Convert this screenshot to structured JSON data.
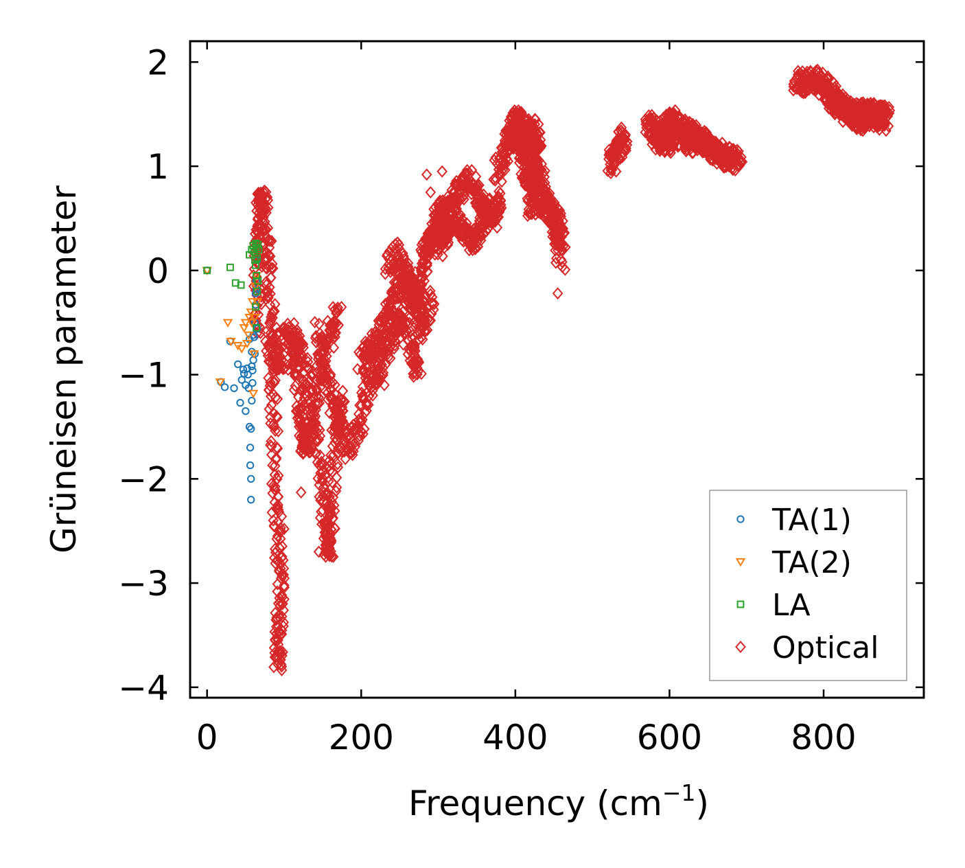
{
  "chart_data": {
    "type": "scatter",
    "title": "",
    "xlabel": "Frequency (cm",
    "xlabel_sup": "−1",
    "xlabel_tail": ")",
    "ylabel": "Grüneisen parameter",
    "xlim": [
      -22,
      930
    ],
    "ylim": [
      -4.1,
      2.2
    ],
    "xticks": [
      0,
      200,
      400,
      600,
      800
    ],
    "xtick_labels": [
      "0",
      "200",
      "400",
      "600",
      "800"
    ],
    "yticks": [
      2,
      1,
      0,
      -1,
      -2,
      -3,
      -4
    ],
    "ytick_labels": [
      "2",
      "1",
      "0",
      "−1",
      "−2",
      "−3",
      "−4"
    ],
    "legend_position": "lower-right",
    "series": [
      {
        "name": "TA(1)",
        "label": "TA(1)",
        "marker": "circle",
        "color": "#1f77b4",
        "x": [
          0,
          18,
          23,
          30,
          35,
          40,
          43,
          45,
          47,
          48,
          50,
          50,
          52,
          53,
          54,
          55,
          55,
          56,
          56,
          57,
          57,
          57,
          58,
          58,
          58,
          59,
          59,
          60,
          60,
          61,
          62,
          62,
          63,
          63,
          64,
          64,
          65,
          65
        ],
        "y": [
          0.0,
          -1.07,
          -1.12,
          -0.68,
          -1.13,
          -0.9,
          -1.27,
          -1.05,
          -0.95,
          -0.99,
          -1.1,
          -1.35,
          -0.94,
          -1.0,
          -1.13,
          -0.66,
          -1.5,
          -1.7,
          -1.87,
          -2.0,
          -2.2,
          -1.52,
          -0.78,
          -1.25,
          -0.92,
          -1.08,
          -0.96,
          -0.62,
          -0.86,
          -0.64,
          -0.8,
          -0.5,
          -0.33,
          -0.22,
          -0.18,
          -0.1,
          0.1,
          -0.56
        ]
      },
      {
        "name": "TA(2)",
        "label": "TA(2)",
        "marker": "triangle-down",
        "color": "#ff7f0e",
        "x": [
          0,
          17,
          27,
          31,
          40,
          45,
          48,
          50,
          52,
          54,
          55,
          57,
          58,
          59,
          60,
          61,
          62,
          63,
          64,
          65
        ],
        "y": [
          0.0,
          -1.07,
          -0.5,
          -0.68,
          -0.72,
          -0.75,
          -0.55,
          -0.5,
          -0.7,
          -0.62,
          -0.45,
          -0.4,
          -0.5,
          -0.3,
          -1.18,
          -0.8,
          -0.45,
          -0.15,
          -0.05,
          -0.3
        ]
      },
      {
        "name": "LA",
        "label": "LA",
        "marker": "square",
        "color": "#2ca02c",
        "x": [
          0,
          30,
          37,
          44,
          55,
          58,
          60,
          61,
          62,
          63,
          63,
          64,
          64,
          65,
          65,
          66,
          66,
          67,
          64,
          63
        ],
        "y": [
          0.0,
          0.03,
          -0.12,
          -0.14,
          0.15,
          0.2,
          0.24,
          0.18,
          0.1,
          0.26,
          0.05,
          -0.05,
          0.22,
          0.12,
          -0.2,
          0.25,
          -0.1,
          0.2,
          -0.55,
          -0.35
        ]
      },
      {
        "name": "Optical",
        "label": "Optical",
        "marker": "diamond",
        "color": "#d62728",
        "x": [],
        "y": [],
        "bands": [
          [
            [
              64,
              -0.6
            ],
            [
              66,
              0.0
            ],
            [
              67,
              0.4
            ],
            [
              70,
              0.7
            ],
            [
              75,
              0.6
            ],
            [
              80,
              0.1
            ],
            [
              85,
              -0.5
            ],
            [
              90,
              -0.85
            ],
            [
              100,
              -0.85
            ]
          ],
          [
            [
              80,
              -0.6
            ],
            [
              85,
              -1.2
            ],
            [
              88,
              -2.0
            ],
            [
              92,
              -2.6
            ],
            [
              95,
              -3.1
            ],
            [
              93,
              -3.55
            ],
            [
              92,
              -3.8
            ]
          ],
          [
            [
              100,
              -0.6
            ],
            [
              110,
              -0.6
            ],
            [
              115,
              -0.8
            ],
            [
              120,
              -1.2
            ],
            [
              125,
              -1.6
            ],
            [
              130,
              -1.7
            ],
            [
              140,
              -1.3
            ],
            [
              150,
              -0.8
            ],
            [
              160,
              -0.6
            ],
            [
              170,
              -0.4
            ]
          ],
          [
            [
              120,
              -0.7
            ],
            [
              130,
              -1.0
            ],
            [
              140,
              -1.5
            ],
            [
              150,
              -2.1
            ],
            [
              155,
              -2.5
            ],
            [
              158,
              -2.7
            ],
            [
              162,
              -2.2
            ],
            [
              168,
              -1.5
            ],
            [
              175,
              -1.2
            ]
          ],
          [
            [
              145,
              -0.6
            ],
            [
              155,
              -1.0
            ],
            [
              165,
              -1.3
            ],
            [
              175,
              -1.6
            ],
            [
              185,
              -1.7
            ],
            [
              200,
              -1.4
            ],
            [
              210,
              -1.0
            ]
          ],
          [
            [
              200,
              -0.9
            ],
            [
              210,
              -0.8
            ],
            [
              220,
              -0.7
            ],
            [
              230,
              -0.5
            ],
            [
              240,
              -0.3
            ],
            [
              250,
              -0.1
            ],
            [
              260,
              -0.2
            ],
            [
              270,
              -0.4
            ],
            [
              280,
              -0.6
            ],
            [
              290,
              -0.2
            ]
          ],
          [
            [
              215,
              -1.1
            ],
            [
              225,
              -0.9
            ],
            [
              235,
              -0.7
            ],
            [
              245,
              -0.5
            ],
            [
              255,
              -0.5
            ],
            [
              265,
              -0.8
            ],
            [
              275,
              -1.0
            ]
          ],
          [
            [
              235,
              0.0
            ],
            [
              250,
              0.2
            ],
            [
              265,
              -0.1
            ],
            [
              275,
              -0.3
            ],
            [
              285,
              0.2
            ],
            [
              295,
              0.4
            ],
            [
              305,
              0.6
            ],
            [
              315,
              0.3
            ]
          ],
          [
            [
              280,
              0.1
            ],
            [
              290,
              0.3
            ],
            [
              300,
              0.5
            ],
            [
              310,
              0.6
            ],
            [
              320,
              0.7
            ],
            [
              330,
              0.8
            ],
            [
              340,
              0.9
            ],
            [
              350,
              0.7
            ],
            [
              360,
              0.6
            ],
            [
              370,
              0.5
            ],
            [
              380,
              0.7
            ]
          ],
          [
            [
              300,
              0.2
            ],
            [
              310,
              0.4
            ],
            [
              320,
              0.5
            ],
            [
              330,
              0.4
            ],
            [
              340,
              0.3
            ],
            [
              350,
              0.3
            ],
            [
              360,
              0.5
            ],
            [
              370,
              0.6
            ]
          ],
          [
            [
              375,
              0.9
            ],
            [
              385,
              1.1
            ],
            [
              395,
              1.3
            ],
            [
              400,
              1.45
            ],
            [
              405,
              1.4
            ],
            [
              410,
              1.3
            ],
            [
              415,
              1.2
            ],
            [
              420,
              1.4
            ],
            [
              425,
              1.3
            ],
            [
              430,
              1.1
            ],
            [
              425,
              0.8
            ],
            [
              420,
              0.5
            ]
          ],
          [
            [
              390,
              1.2
            ],
            [
              400,
              1.3
            ],
            [
              410,
              1.2
            ],
            [
              420,
              1.0
            ],
            [
              430,
              0.9
            ],
            [
              440,
              0.7
            ],
            [
              450,
              0.55
            ],
            [
              455,
              0.45
            ],
            [
              460,
              0.3
            ]
          ],
          [
            [
              410,
              1.0
            ],
            [
              420,
              0.8
            ],
            [
              430,
              0.7
            ],
            [
              440,
              0.6
            ],
            [
              450,
              0.5
            ],
            [
              455,
              0.3
            ],
            [
              460,
              0.1
            ]
          ],
          [
            [
              525,
              1.0
            ],
            [
              530,
              1.1
            ],
            [
              535,
              1.2
            ],
            [
              540,
              1.3
            ]
          ],
          [
            [
              570,
              1.4
            ],
            [
              580,
              1.35
            ],
            [
              590,
              1.3
            ],
            [
              600,
              1.45
            ],
            [
              610,
              1.4
            ],
            [
              620,
              1.35
            ],
            [
              630,
              1.3
            ],
            [
              640,
              1.25
            ],
            [
              650,
              1.2
            ],
            [
              660,
              1.15
            ],
            [
              670,
              1.1
            ],
            [
              680,
              1.08
            ],
            [
              690,
              1.05
            ]
          ],
          [
            [
              580,
              1.3
            ],
            [
              590,
              1.25
            ],
            [
              600,
              1.2
            ],
            [
              610,
              1.3
            ],
            [
              620,
              1.25
            ],
            [
              630,
              1.2
            ],
            [
              640,
              1.25
            ],
            [
              650,
              1.2
            ],
            [
              660,
              1.1
            ]
          ],
          [
            [
              765,
              1.8
            ],
            [
              775,
              1.82
            ],
            [
              785,
              1.85
            ],
            [
              795,
              1.8
            ],
            [
              805,
              1.75
            ],
            [
              815,
              1.65
            ],
            [
              825,
              1.55
            ],
            [
              835,
              1.5
            ],
            [
              845,
              1.5
            ],
            [
              855,
              1.52
            ],
            [
              865,
              1.5
            ],
            [
              875,
              1.48
            ],
            [
              885,
              1.5
            ]
          ],
          [
            [
              810,
              1.65
            ],
            [
              820,
              1.6
            ],
            [
              830,
              1.55
            ],
            [
              840,
              1.45
            ],
            [
              850,
              1.45
            ],
            [
              860,
              1.5
            ],
            [
              870,
              1.45
            ],
            [
              880,
              1.45
            ]
          ]
        ],
        "outliers": [
          [
            455,
            -0.22
          ],
          [
            122,
            -2.13
          ],
          [
            145,
            -2.7
          ],
          [
            158,
            -2.73
          ],
          [
            100,
            -2.48
          ],
          [
            90,
            -3.35
          ],
          [
            92,
            -3.78
          ],
          [
            285,
            0.92
          ],
          [
            290,
            0.75
          ],
          [
            305,
            0.95
          ],
          [
            395,
            1.2
          ],
          [
            268,
            -1.02
          ],
          [
            215,
            -1.2
          ],
          [
            230,
            -1.1
          ],
          [
            445,
            0.6
          ]
        ]
      }
    ]
  }
}
